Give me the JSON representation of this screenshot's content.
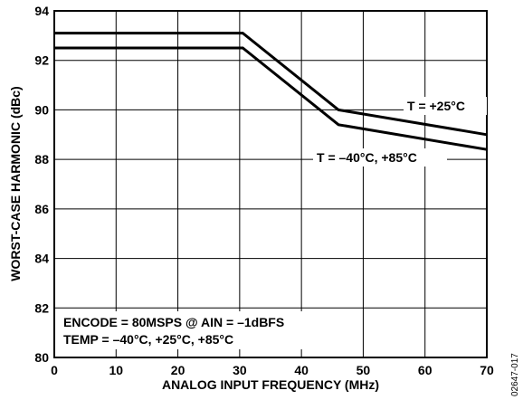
{
  "chart_data": {
    "type": "line",
    "xlabel": "ANALOG INPUT FREQUENCY (MHz)",
    "ylabel": "WORST-CASE HARMONIC (dBc)",
    "xlim": [
      0,
      70
    ],
    "ylim": [
      80,
      94
    ],
    "x_ticks": [
      0,
      10,
      20,
      30,
      40,
      50,
      60,
      70
    ],
    "y_ticks": [
      80,
      82,
      84,
      86,
      88,
      90,
      92,
      94
    ],
    "grid": true,
    "series": [
      {
        "name": "T = +25°C",
        "x": [
          0,
          30.5,
          46,
          70
        ],
        "y": [
          93.1,
          93.1,
          90.0,
          89.0
        ]
      },
      {
        "name": "T = –40°C, +85°C",
        "x": [
          0,
          30.5,
          46,
          70
        ],
        "y": [
          92.5,
          92.5,
          89.4,
          88.4
        ]
      }
    ],
    "annotations": {
      "conditions_line1": "ENCODE = 80MSPS @ AIN = –1dBFS",
      "conditions_line2": "TEMP = –40°C, +25°C, +85°C"
    },
    "figure_id": "02647-017"
  }
}
